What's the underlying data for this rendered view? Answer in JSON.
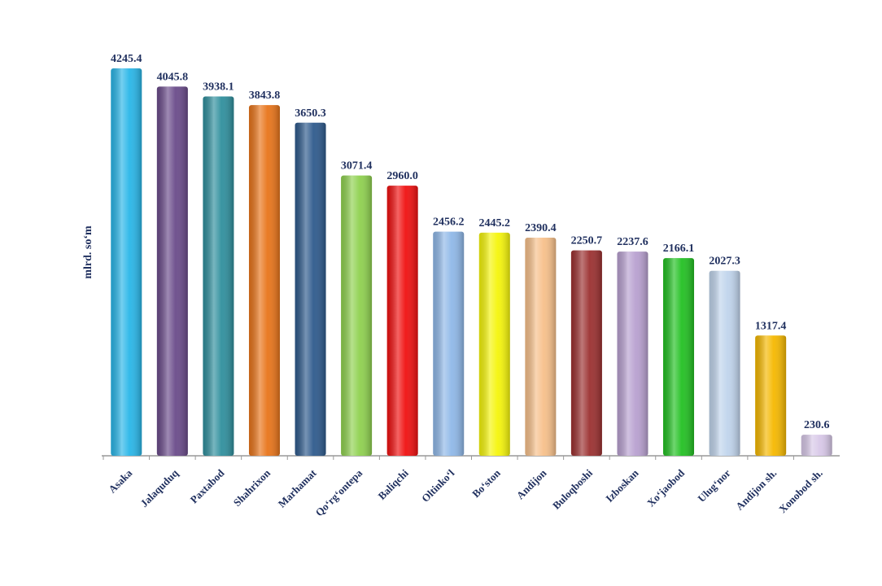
{
  "chart_data": {
    "type": "bar",
    "y_label": "mlrd. so‘m",
    "categories": [
      "Asaka",
      "Jalaquduq",
      "Paxtabod",
      "Shahrixon",
      "Marhamat",
      "Qo‘rg‘ontepa",
      "Baliqchi",
      "Oltinko‘l",
      "Bo‘ston",
      "Andijon",
      "Buloqboshi",
      "Izboskan",
      "Xo‘jaobod",
      "Ulug‘nor",
      "Andijon sh.",
      "Xonobod sh."
    ],
    "values": [
      4245.4,
      4045.8,
      3938.1,
      3843.8,
      3650.3,
      3071.4,
      2960.0,
      2456.2,
      2445.2,
      2390.4,
      2250.7,
      2237.6,
      2166.1,
      2027.3,
      1317.4,
      230.6
    ],
    "value_labels": [
      "4245.4",
      "4045.8",
      "3938.1",
      "3843.8",
      "3650.3",
      "3071.4",
      "2960.0",
      "2456.2",
      "2445.2",
      "2390.4",
      "2250.7",
      "2237.6",
      "2166.1",
      "2027.3",
      "1317.4",
      "230.6"
    ],
    "colors": [
      "#29b6e8",
      "#6a4b8a",
      "#2f8f9d",
      "#e8741a",
      "#2e5a8c",
      "#8fd14f",
      "#f01010",
      "#8fb8e8",
      "#f5f50a",
      "#f7c08a",
      "#9b3030",
      "#b8a0d0",
      "#22c022",
      "#c0d4ec",
      "#f5b800",
      "#d8c8e8"
    ],
    "ylim": [
      0,
      4500
    ]
  }
}
